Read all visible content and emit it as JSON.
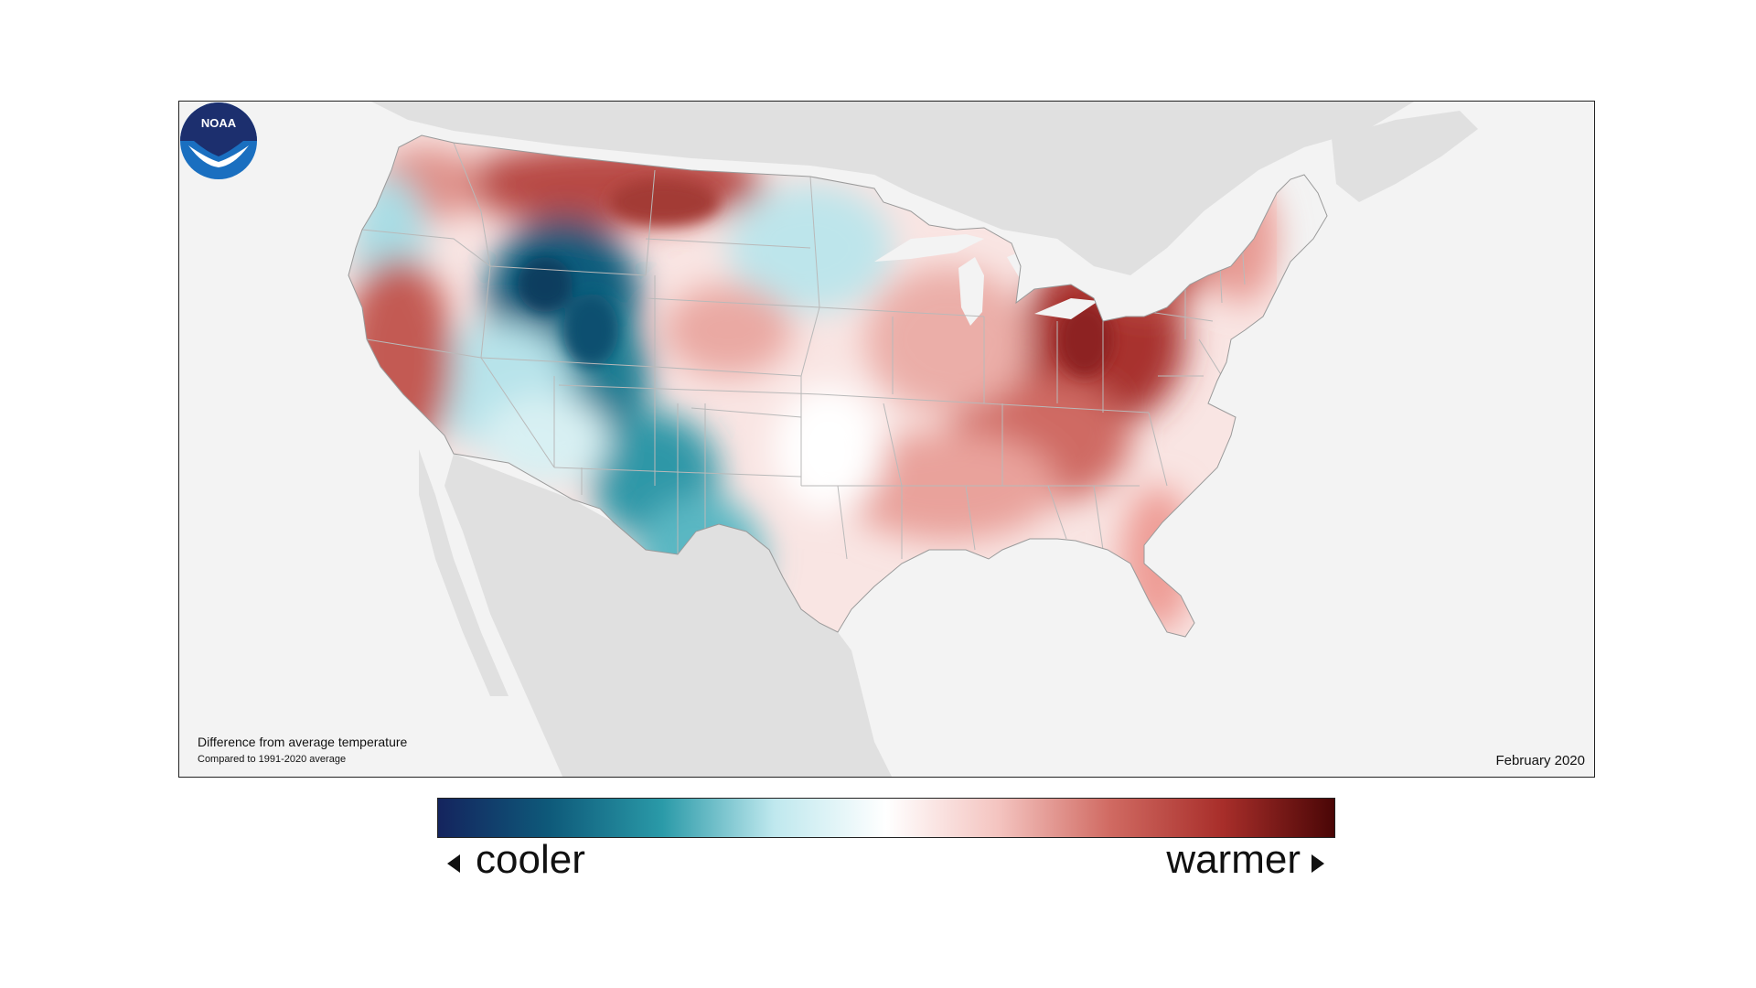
{
  "map": {
    "caption_title": "Difference from average temperature",
    "caption_subtitle": "Compared to 1991-2020 average",
    "date": "February 2020",
    "logo_text": "NOAA"
  },
  "legend": {
    "cooler_label": "cooler",
    "warmer_label": "warmer",
    "colors": [
      "#14245e",
      "#0e5a7a",
      "#2a9aa8",
      "#bfe8ee",
      "#ffffff",
      "#f4c4c0",
      "#d06a62",
      "#a82e2a",
      "#4a0606"
    ]
  },
  "colors": {
    "ocean": "#f3f3f3",
    "land_outside": "#e0e0e0",
    "state_border": "#b9b9b9",
    "warm_strong": "#a8332e",
    "warm_light": "#eba8a2",
    "cool_strong": "#0f5c7c",
    "cool_light": "#a9dde5"
  }
}
